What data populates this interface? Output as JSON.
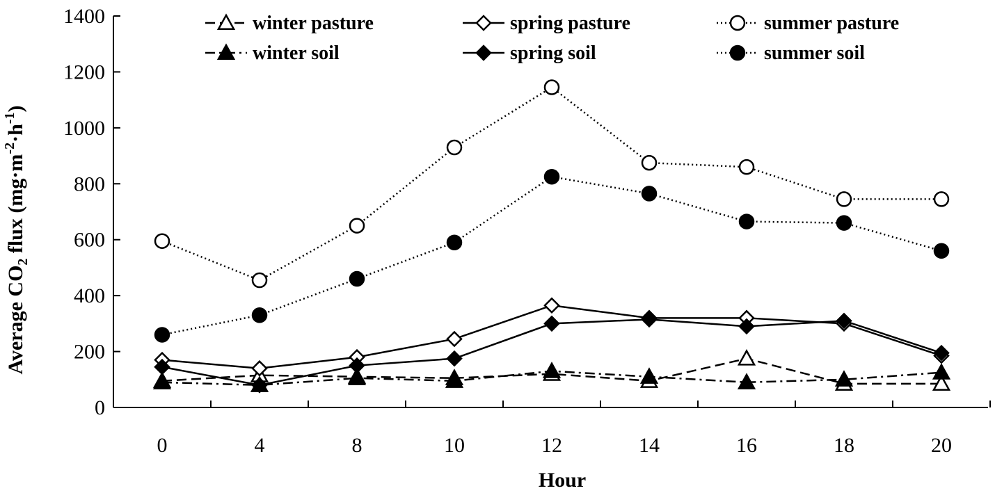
{
  "chart_data": {
    "type": "line",
    "xlabel": "Hour",
    "ylabel": "Average CO",
    "ylabel_sub": "2",
    "ylabel_rest": " flux (mg·m",
    "ylabel_sup1": "-2",
    "ylabel_mid": "·h",
    "ylabel_sup2": "-1",
    "ylabel_end": ")",
    "categories": [
      "0",
      "4",
      "8",
      "10",
      "12",
      "14",
      "16",
      "18",
      "20"
    ],
    "ylim": [
      0,
      1400
    ],
    "yticks": [
      "0",
      "200",
      "400",
      "600",
      "800",
      "1000",
      "1200",
      "1400"
    ],
    "grid": false,
    "legend_position": "top",
    "series": [
      {
        "name": "winter pasture",
        "marker": "triangle-open",
        "line": "dash",
        "values": [
          95,
          115,
          110,
          105,
          120,
          95,
          175,
          85,
          85
        ]
      },
      {
        "name": "spring pasture",
        "marker": "diamond-open",
        "line": "solid",
        "values": [
          170,
          140,
          180,
          245,
          365,
          320,
          320,
          300,
          185
        ]
      },
      {
        "name": "summer pasture",
        "marker": "circle-open",
        "line": "dot",
        "values": [
          595,
          455,
          650,
          930,
          1145,
          875,
          860,
          745,
          745
        ]
      },
      {
        "name": "winter soil",
        "marker": "triangle-filled",
        "line": "dashdot",
        "values": [
          90,
          80,
          105,
          95,
          130,
          110,
          90,
          100,
          125
        ]
      },
      {
        "name": "spring soil",
        "marker": "diamond-filled",
        "line": "solid",
        "values": [
          145,
          80,
          150,
          175,
          300,
          315,
          290,
          310,
          195
        ]
      },
      {
        "name": "summer soil",
        "marker": "circle-filled",
        "line": "dot",
        "values": [
          260,
          330,
          460,
          590,
          825,
          765,
          665,
          660,
          560
        ]
      }
    ]
  }
}
